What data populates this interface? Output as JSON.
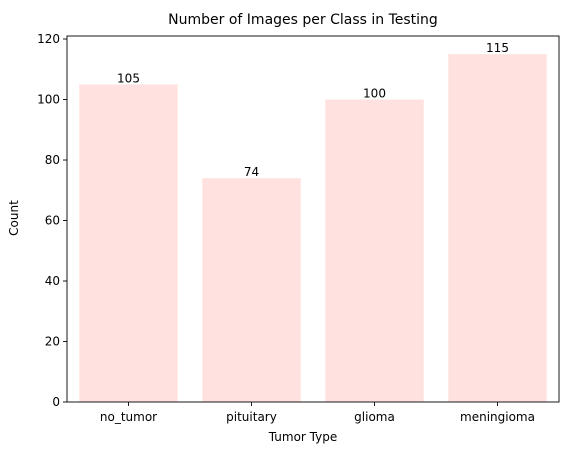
{
  "chart_data": {
    "type": "bar",
    "title": "Number of Images per Class in Testing",
    "xlabel": "Tumor Type",
    "ylabel": "Count",
    "categories": [
      "no_tumor",
      "pituitary",
      "glioma",
      "meningioma"
    ],
    "values": [
      105,
      74,
      100,
      115
    ],
    "data_labels": [
      "105",
      "74",
      "100",
      "115"
    ],
    "ylim": [
      0,
      121
    ],
    "yticks": [
      0,
      20,
      40,
      60,
      80,
      100,
      120
    ],
    "grid": false,
    "legend": "none",
    "bar_color": "#ffe2df",
    "axis_color": "#000000"
  }
}
